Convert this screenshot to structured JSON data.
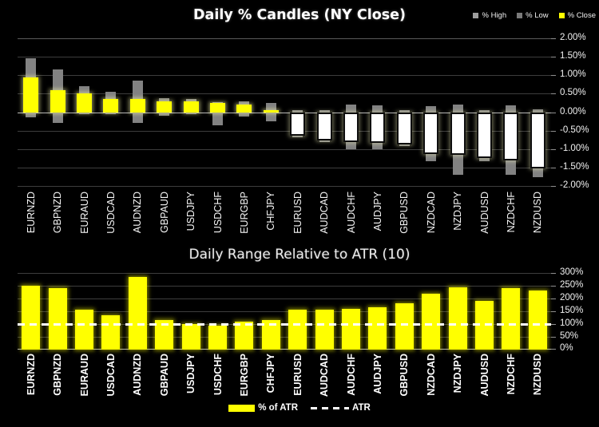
{
  "colors": {
    "background": "#000000",
    "bar": "#ffff00",
    "candle_positive": "#ffff00",
    "candle_negative": "#ffffff",
    "wick": "#828282",
    "grid": "#3d3d3d",
    "grid_top": "#5a5a5a",
    "zero_line": "#b8b8b8",
    "text": "#ffffff",
    "legend_high": "#9e9e9e",
    "legend_low": "#7a7a7a"
  },
  "chart_data": [
    {
      "id": "daily-percent-candles",
      "type": "candlestick",
      "title": "Daily % Candles (NY Close)",
      "legend_position": "top-right",
      "grid": true,
      "y_axis_side": "right",
      "ylim": [
        -2,
        2
      ],
      "yticks": [
        {
          "v": 2.0,
          "label": "2.00%"
        },
        {
          "v": 1.5,
          "label": "1.50%"
        },
        {
          "v": 1.0,
          "label": "1.00%"
        },
        {
          "v": 0.5,
          "label": "0.50%"
        },
        {
          "v": 0.0,
          "label": "0.00%"
        },
        {
          "v": -0.5,
          "label": "-0.50%"
        },
        {
          "v": -1.0,
          "label": "-1.00%"
        },
        {
          "v": -1.5,
          "label": "-1.50%"
        },
        {
          "v": -2.0,
          "label": "-2.00%"
        }
      ],
      "categories": [
        "EURNZD",
        "GBPNZD",
        "EURAUD",
        "USDCAD",
        "AUDNZD",
        "GBPAUD",
        "USDJPY",
        "USDCHF",
        "EURGBP",
        "CHFJPY",
        "EURUSD",
        "AUDCAD",
        "AUDCHF",
        "AUDJPY",
        "GBPUSD",
        "NZDCAD",
        "NZDJPY",
        "AUDUSD",
        "NZDCHF",
        "NZDUSD"
      ],
      "series": [
        {
          "name": "% High",
          "values": [
            1.45,
            1.15,
            0.7,
            0.55,
            0.85,
            0.37,
            0.35,
            0.28,
            0.3,
            0.25,
            0.05,
            0.05,
            0.2,
            0.18,
            0.06,
            0.16,
            0.2,
            0.05,
            0.18,
            0.08
          ]
        },
        {
          "name": "% Low",
          "values": [
            -0.15,
            -0.3,
            -0.05,
            -0.05,
            -0.3,
            -0.1,
            -0.05,
            -0.35,
            -0.12,
            -0.25,
            -0.68,
            -0.82,
            -1.0,
            -1.0,
            -0.92,
            -1.33,
            -1.7,
            -1.33,
            -1.7,
            -1.77
          ]
        },
        {
          "name": "% Close",
          "values": [
            0.95,
            0.6,
            0.5,
            0.35,
            0.35,
            0.3,
            0.3,
            0.25,
            0.2,
            0.05,
            -0.63,
            -0.76,
            -0.82,
            -0.84,
            -0.88,
            -1.13,
            -1.15,
            -1.25,
            -1.3,
            -1.52
          ]
        }
      ],
      "legend": [
        {
          "label": "% High",
          "color": "#9e9e9e",
          "marker": "swatch"
        },
        {
          "label": "% Low",
          "color": "#7a7a7a",
          "marker": "swatch"
        },
        {
          "label": "% Close",
          "color": "#ffff00",
          "marker": "swatch"
        }
      ]
    },
    {
      "id": "daily-range-vs-atr",
      "type": "bar",
      "title": "Daily Range Relative to ATR (10)",
      "legend_position": "bottom-center",
      "grid": true,
      "y_axis_side": "right",
      "ylim": [
        0,
        300
      ],
      "yticks": [
        {
          "v": 300,
          "label": "300%"
        },
        {
          "v": 250,
          "label": "250%"
        },
        {
          "v": 200,
          "label": "200%"
        },
        {
          "v": 150,
          "label": "150%"
        },
        {
          "v": 100,
          "label": "100%"
        },
        {
          "v": 50,
          "label": "50%"
        },
        {
          "v": 0,
          "label": "0%"
        }
      ],
      "categories": [
        "EURNZD",
        "GBPNZD",
        "EURAUD",
        "USDCAD",
        "AUDNZD",
        "GBPAUD",
        "USDJPY",
        "USDCHF",
        "EURGBP",
        "CHFJPY",
        "EURUSD",
        "AUDCAD",
        "AUDCHF",
        "AUDJPY",
        "GBPUSD",
        "NZDCAD",
        "NZDJPY",
        "AUDUSD",
        "NZDCHF",
        "NZDUSD"
      ],
      "values": [
        250,
        240,
        155,
        135,
        285,
        115,
        100,
        95,
        110,
        115,
        155,
        155,
        160,
        165,
        180,
        220,
        245,
        190,
        240,
        230
      ],
      "reference_line": {
        "label": "ATR",
        "value": 100,
        "style": "dashed"
      },
      "legend": [
        {
          "label": "% of ATR",
          "color": "#ffff00",
          "marker": "swatch"
        },
        {
          "label": "ATR",
          "marker": "dash"
        }
      ]
    }
  ]
}
